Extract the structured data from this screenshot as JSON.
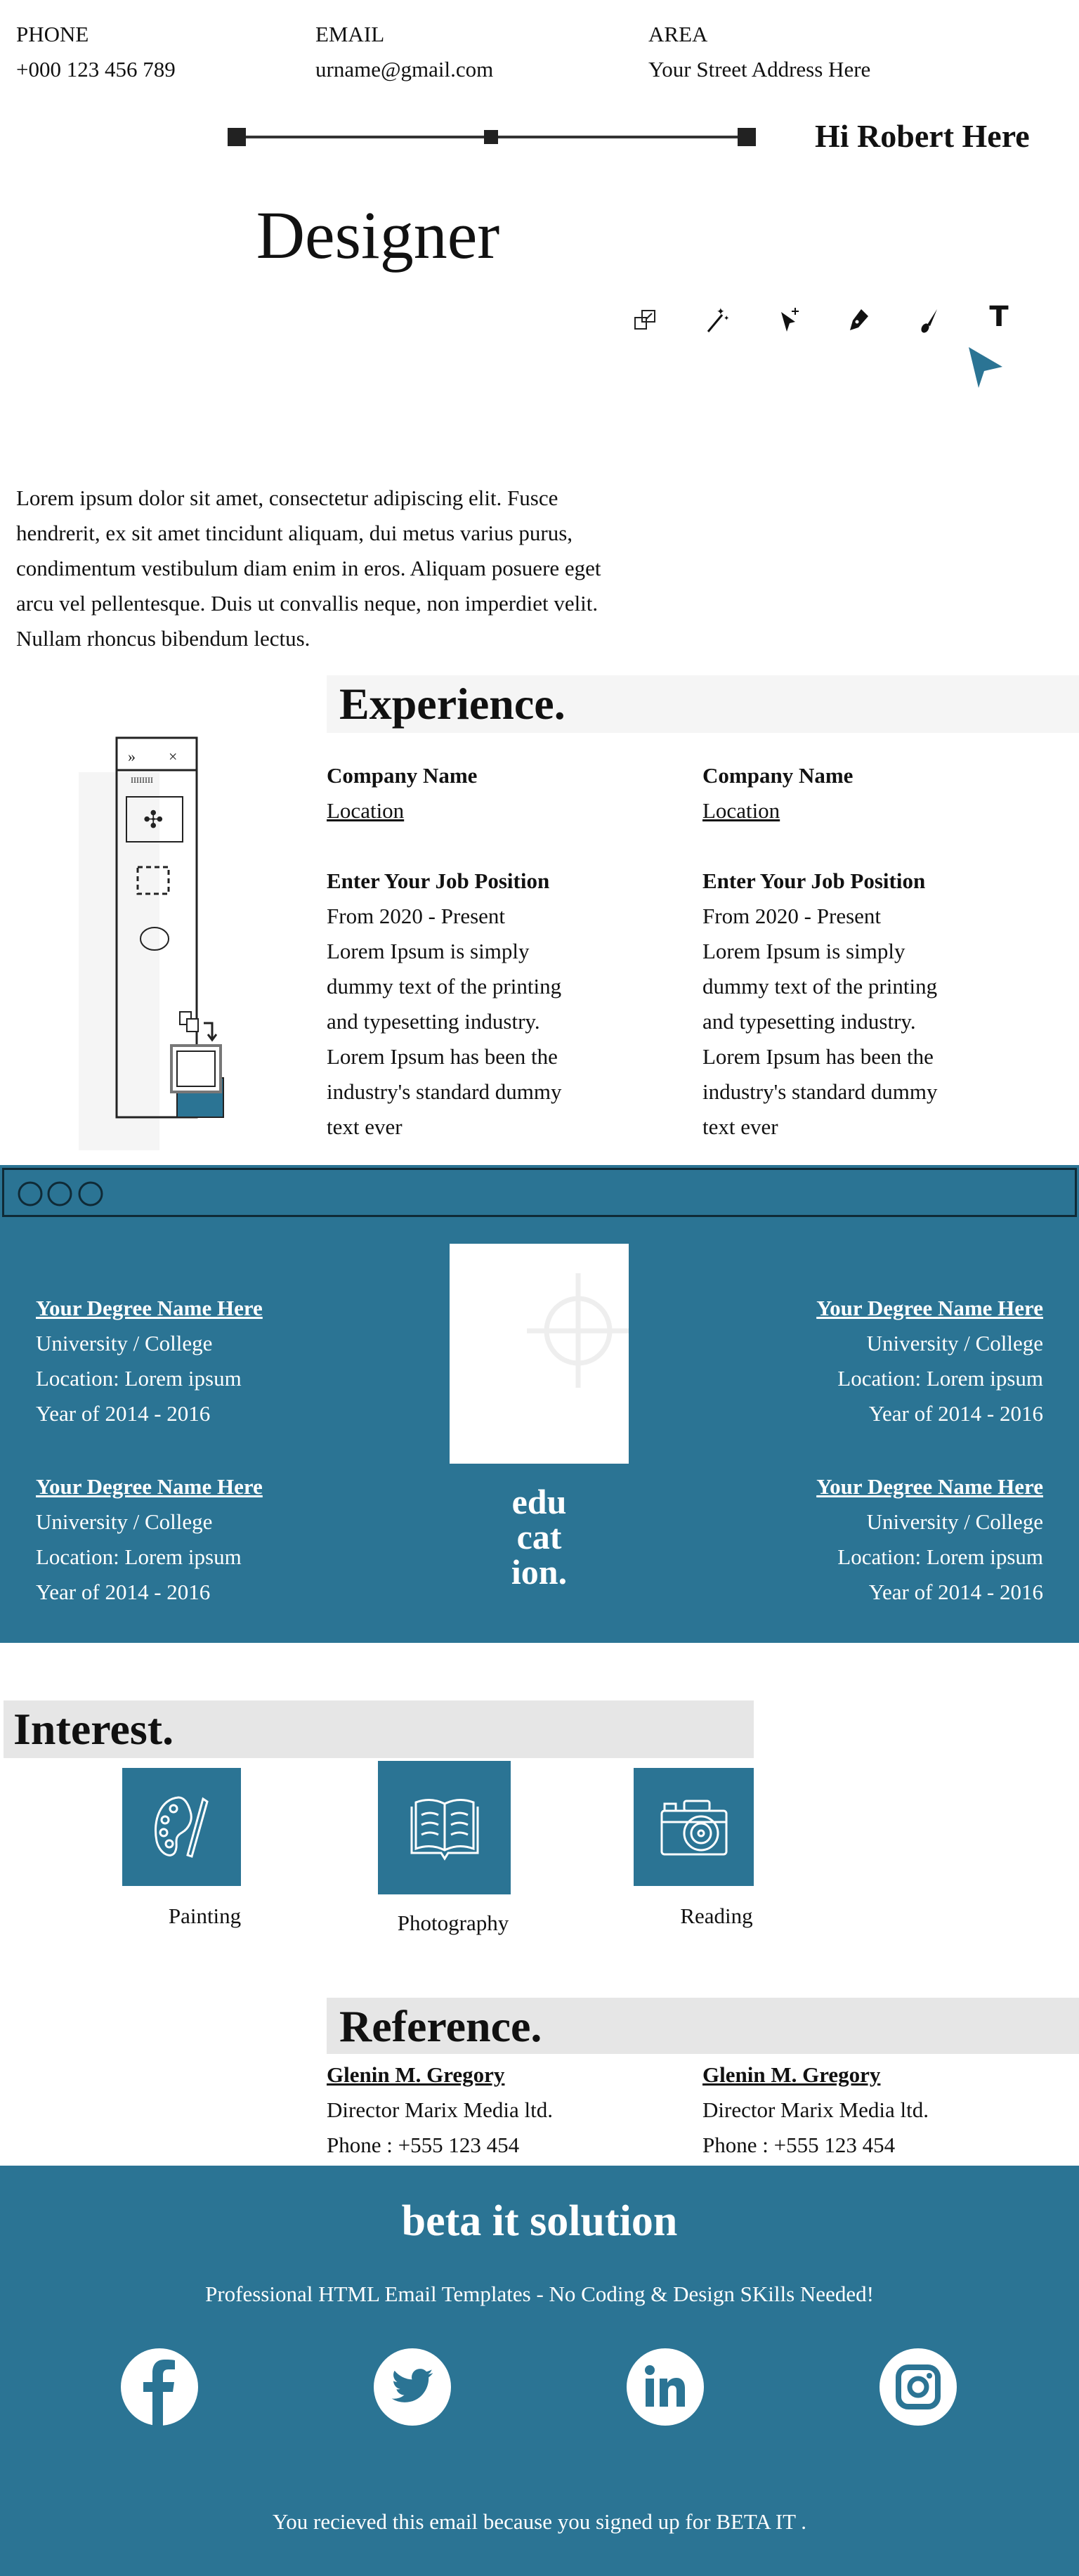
{
  "contact": [
    {
      "label": "PHONE",
      "value": "+000 123 456 789"
    },
    {
      "label": "EMAIL",
      "value": "urname@gmail.com"
    },
    {
      "label": "AREA",
      "value": "Your Street Address Here"
    }
  ],
  "greeting": "Hi Robert Here",
  "title": "Designer",
  "tool_icons": [
    "transform-icon",
    "magic-wand-icon",
    "direct-select-icon",
    "pen-tool-icon",
    "brush-icon",
    "type-tool-icon"
  ],
  "cursor_icon": "cursor-icon",
  "intro": "Lorem ipsum dolor sit amet, consectetur adipiscing elit. Fusce hendrerit, ex sit amet tincidunt aliquam, dui metus varius purus, condimentum vestibulum diam enim in eros. Aliquam posuere eget arcu vel pellentesque. Duis ut convallis neque, non imperdiet velit. Nullam rhoncus bibendum lectus.",
  "experience": {
    "heading": "Experience.",
    "items": [
      {
        "company": "Company Name",
        "location": "Location",
        "position": "Enter Your Job Position",
        "period": "From 2020 - Present",
        "lines": [
          "Lorem Ipsum is simply",
          "dummy text of the printing",
          "and typesetting industry.",
          "Lorem Ipsum has been the",
          "industry's standard dummy",
          "text ever"
        ]
      },
      {
        "company": "Company Name",
        "location": "Location",
        "position": "Enter Your Job Position",
        "period": "From 2020 - Present",
        "lines": [
          "Lorem Ipsum is simply",
          "dummy text of the printing",
          "and typesetting industry.",
          "Lorem Ipsum has been the",
          "industry's standard dummy",
          "text ever"
        ]
      }
    ]
  },
  "education": {
    "heading_lines": [
      "edu",
      "cat",
      "ion."
    ],
    "items": [
      {
        "degree": "Your Degree Name Here",
        "school": "University / College",
        "location": "Location: Lorem ipsum",
        "years": "Year of 2014 - 2016"
      },
      {
        "degree": "Your Degree Name Here",
        "school": "University / College",
        "location": "Location: Lorem ipsum",
        "years": "Year of 2014 - 2016"
      },
      {
        "degree": "Your Degree Name Here",
        "school": "University / College",
        "location": "Location: Lorem ipsum",
        "years": "Year of 2014 - 2016"
      },
      {
        "degree": "Your Degree Name Here",
        "school": "University / College",
        "location": "Location: Lorem ipsum",
        "years": "Year of 2014 - 2016"
      }
    ]
  },
  "interest": {
    "heading": "Interest.",
    "items": [
      {
        "label": "Painting",
        "icon": "palette-icon"
      },
      {
        "label": "Photography",
        "icon": "book-icon"
      },
      {
        "label": "Reading",
        "icon": "camera-icon"
      }
    ]
  },
  "reference": {
    "heading": "Reference.",
    "items": [
      {
        "name": "Glenin M. Gregory",
        "role": "Director Marix Media ltd.",
        "phone": "Phone : +555 123 454"
      },
      {
        "name": "Glenin M. Gregory",
        "role": "Director Marix Media ltd.",
        "phone": "Phone : +555 123 454"
      }
    ]
  },
  "footer": {
    "brand": "beta it solution",
    "tagline": "Professional HTML Email Templates - No Coding & Design SKills Needed!",
    "social": [
      "facebook-icon",
      "twitter-icon",
      "linkedin-icon",
      "instagram-icon"
    ],
    "notice": "You recieved this email because you signed up for BETA IT ."
  },
  "colors": {
    "accent": "#2b7494",
    "section_bg": "#f5f5f5",
    "heading_bg": "#e6e6e6"
  }
}
